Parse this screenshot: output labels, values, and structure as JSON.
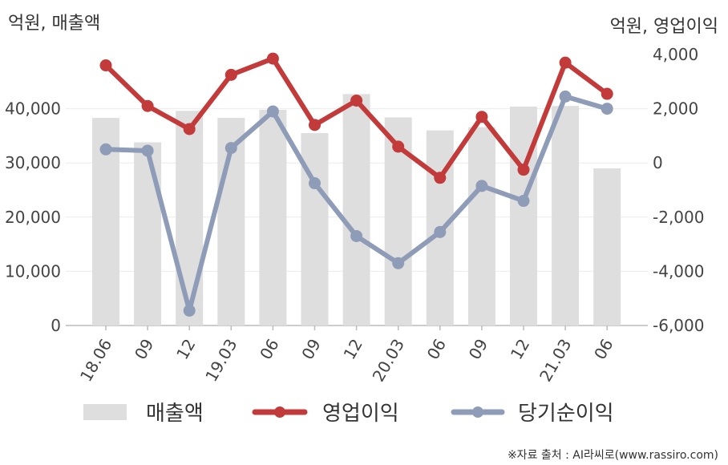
{
  "chart_data": {
    "type": "bar+line",
    "left_axis_unit": "억원, 매출액",
    "right_axis_unit": "억원, 영업이익",
    "categories": [
      "18.06",
      "09",
      "12",
      "19.03",
      "06",
      "09",
      "12",
      "20.03",
      "06",
      "09",
      "12",
      "21.03",
      "06"
    ],
    "left_axis": {
      "ylim": [
        0,
        50000
      ],
      "ticks": [
        "0",
        "10,000",
        "20,000",
        "30,000",
        "40,000"
      ],
      "tick_values": [
        0,
        10000,
        20000,
        30000,
        40000
      ]
    },
    "right_axis": {
      "ylim": [
        -6000,
        4000
      ],
      "ticks": [
        "-6,000",
        "-4,000",
        "-2,000",
        "0",
        "2,000",
        "4,000"
      ],
      "tick_values": [
        -6000,
        -4000,
        -2000,
        0,
        2000,
        4000
      ]
    },
    "series": [
      {
        "name": "매출액",
        "type": "bar",
        "axis": "left",
        "color": "#dedede",
        "values": [
          38300,
          33800,
          39600,
          38300,
          39800,
          35500,
          42700,
          38400,
          36000,
          36600,
          40400,
          40500,
          29000
        ]
      },
      {
        "name": "영업이익",
        "type": "line",
        "axis": "right",
        "color": "#c23a3a",
        "values": [
          3600,
          2100,
          1250,
          3250,
          3850,
          1400,
          2300,
          600,
          -550,
          1700,
          -250,
          3700,
          2550
        ]
      },
      {
        "name": "당기순이익",
        "type": "line",
        "axis": "right",
        "color": "#8e9cb8",
        "values": [
          500,
          450,
          -5450,
          550,
          1900,
          -750,
          -2700,
          -3700,
          -2550,
          -850,
          -1400,
          2450,
          2000
        ]
      }
    ],
    "grid": "horizontal",
    "legend_position": "bottom"
  },
  "source_note": "※자료 출처 : AI라씨로(www.rassiro.com)"
}
